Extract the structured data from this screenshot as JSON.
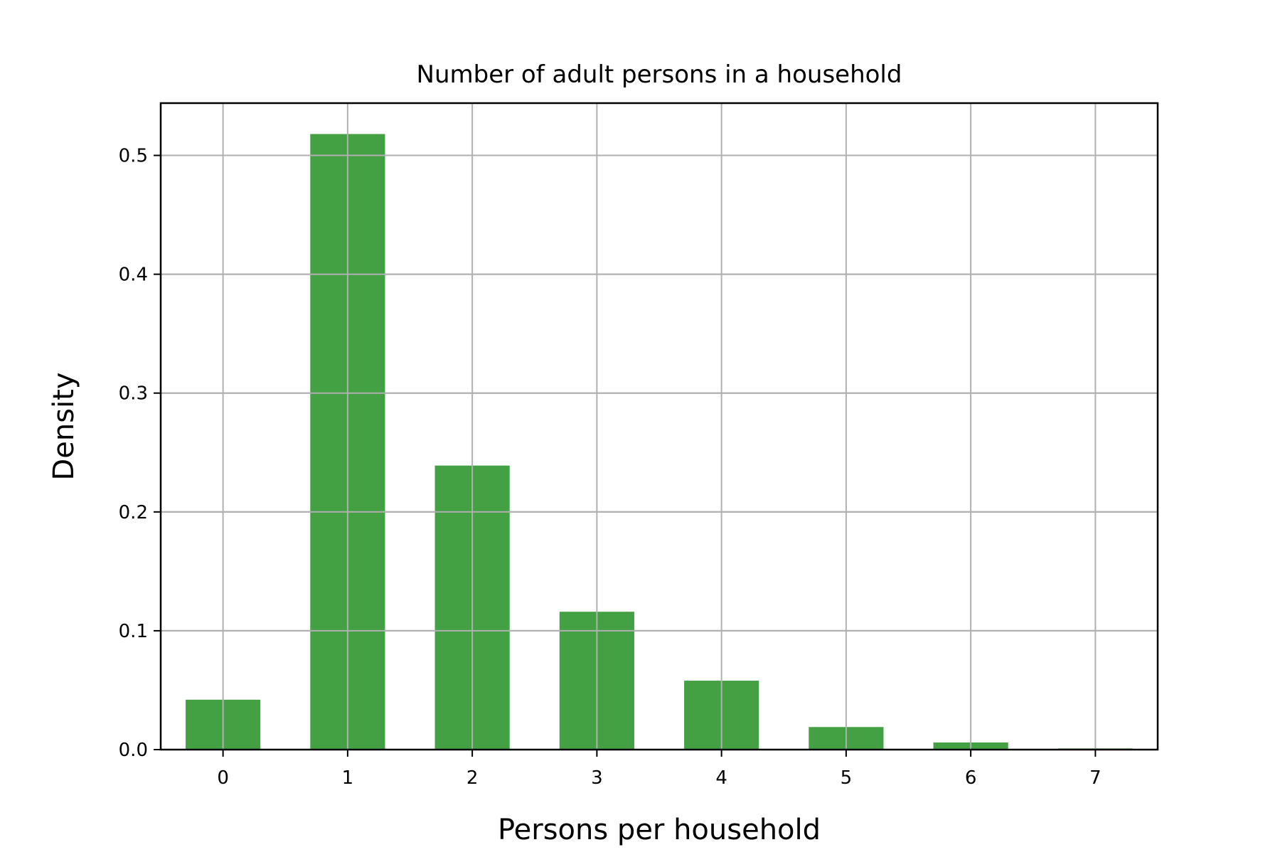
{
  "chart_data": {
    "type": "bar",
    "title": "Number of adult persons in a household",
    "xlabel": "Persons per household",
    "ylabel": "Density",
    "categories": [
      "0",
      "1",
      "2",
      "3",
      "4",
      "5",
      "6",
      "7"
    ],
    "x": [
      0,
      1,
      2,
      3,
      4,
      5,
      6,
      7
    ],
    "values": [
      0.042,
      0.518,
      0.239,
      0.116,
      0.058,
      0.019,
      0.006,
      0.001
    ],
    "xlim": [
      -0.5,
      7.5
    ],
    "ylim": [
      0,
      0.544
    ],
    "yticks": [
      0.0,
      0.1,
      0.2,
      0.3,
      0.4,
      0.5
    ],
    "ytick_labels": [
      "0.0",
      "0.1",
      "0.2",
      "0.3",
      "0.4",
      "0.5"
    ],
    "bar_width": 0.6,
    "grid": true,
    "bar_color": "#43a143"
  }
}
